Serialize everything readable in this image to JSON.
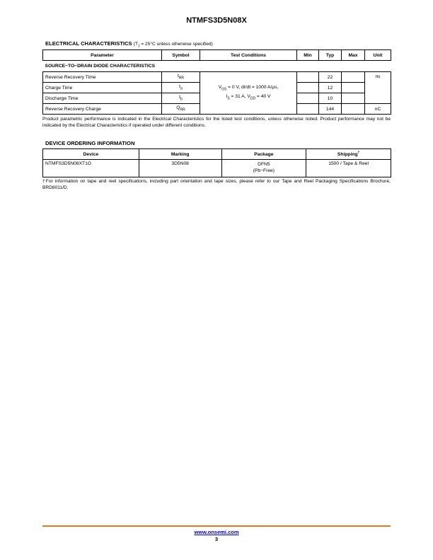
{
  "header": {
    "title": "NTMFS3D5N08X"
  },
  "electrical": {
    "heading": "ELECTRICAL CHARACTERISTICS",
    "condition_pre": "(T",
    "condition_sub": "J",
    "condition_post": " = 25°C unless otherwise specified)",
    "columns": [
      "Parameter",
      "Symbol",
      "Test Conditions",
      "Min",
      "Typ",
      "Max",
      "Unit"
    ],
    "section": "SOURCE−TO−DRAIN DIODE CHARACTERISTICS",
    "rows": [
      {
        "parameter": "Reverse Recovery Time",
        "symbol": "t",
        "symbol_sub": "RR",
        "min": "",
        "typ": "22",
        "max": "",
        "unit": "ns"
      },
      {
        "parameter": "Charge Time",
        "symbol": "t",
        "symbol_sub": "a",
        "min": "",
        "typ": "12",
        "max": "",
        "unit": ""
      },
      {
        "parameter": "Discharge Time",
        "symbol": "t",
        "symbol_sub": "b",
        "min": "",
        "typ": "10",
        "max": "",
        "unit": ""
      },
      {
        "parameter": "Reverse Recovery Charge",
        "symbol": "Q",
        "symbol_sub": "RR",
        "min": "",
        "typ": "144",
        "max": "",
        "unit": "nC"
      }
    ],
    "test_conditions": {
      "l1a": "V",
      "l1s": "GS",
      "l1b": " = 0 V, dI/dt = 1000 A/μs,",
      "l2a": "I",
      "l2s": "S",
      "l2b": " = 31 A, V",
      "l2s2": "DD",
      "l2c": " = 40 V"
    },
    "note": "Product parametric performance is indicated in the Electrical Characteristics for the listed test conditions, unless otherwise noted. Product performance may not be indicated by the Electrical Characteristics if operated under different conditions."
  },
  "ordering": {
    "heading": "DEVICE ORDERING INFORMATION",
    "columns": [
      "Device",
      "Marking",
      "Package",
      "Shipping"
    ],
    "dagger": "†",
    "row": {
      "device": "NTMFS3D5N08XT1G",
      "marking": "3D5N08",
      "package_l1": "DFN5",
      "package_l2": "(Pb−Free)",
      "shipping": "1500 / Tape & Reel"
    },
    "note": "†For information on tape and reel specifications, including part orientation and tape sizes, please refer to our Tape and Reel Packaging Specifications Brochure, BRD8011/D."
  },
  "footer": {
    "url": "www.onsemi.com",
    "page": "3",
    "rule_color": "#e87722"
  }
}
